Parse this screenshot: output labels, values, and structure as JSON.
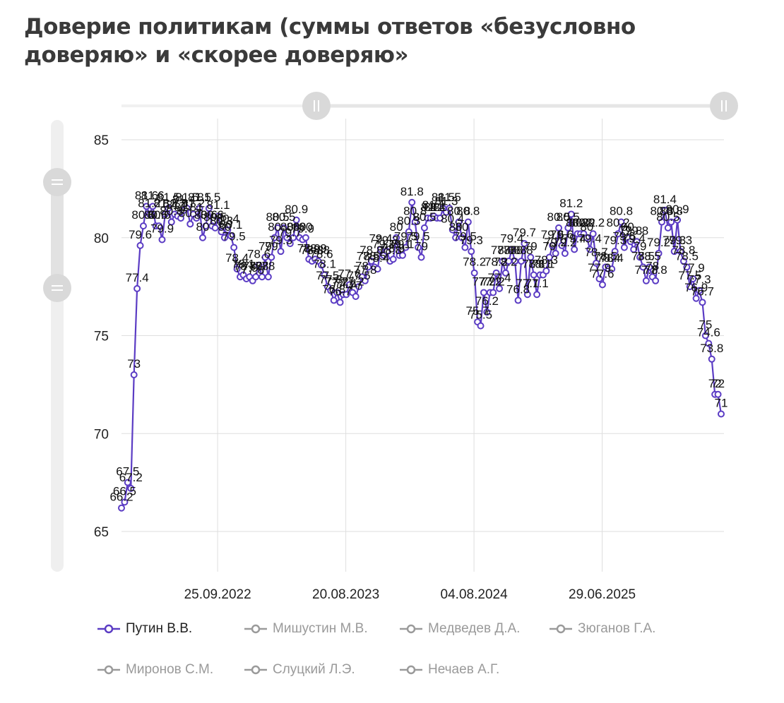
{
  "title": "Доверие политикам (суммы ответов «безусловно доверяю» и «скорее доверяю»",
  "colors": {
    "primary": "#5b3cc4",
    "inactive": "#9a9a9a",
    "grid": "#dedede",
    "scrollbar": "#ededed",
    "handle": "#d9d9d9"
  },
  "chart_data": {
    "type": "line",
    "title": "Доверие политикам (суммы ответов «безусловно доверяю» и «скорее доверяю»",
    "xlabel": "",
    "ylabel": "",
    "ylim": [
      65,
      85
    ],
    "y_ticks": [
      65,
      70,
      75,
      80,
      85
    ],
    "x_tick_labels": [
      "25.09.2022",
      "20.08.2023",
      "04.08.2024",
      "29.06.2025"
    ],
    "grid": true,
    "legend_position": "bottom",
    "data_labels": true,
    "series": [
      {
        "name": "Путин В.В.",
        "active": true,
        "values": [
          66.2,
          66.5,
          67.5,
          67.2,
          73.0,
          77.4,
          79.6,
          80.6,
          81.6,
          81.2,
          81.6,
          80.6,
          80.6,
          79.9,
          81.2,
          81.5,
          80.8,
          81.2,
          81.1,
          81.0,
          81.4,
          81.5,
          80.7,
          81.2,
          81.0,
          81.5,
          80.0,
          80.6,
          81.5,
          80.6,
          80.5,
          81.1,
          80.3,
          80.0,
          80.4,
          80.1,
          79.5,
          78.4,
          78.0,
          78.1,
          77.9,
          78.0,
          77.8,
          78.0,
          78.6,
          78.0,
          79.0,
          78.0,
          79.0,
          80.0,
          80.5,
          79.3,
          80.5,
          80.0,
          79.7,
          80.0,
          80.9,
          80.0,
          79.9,
          80.0,
          78.9,
          78.8,
          78.9,
          78.8,
          78.6,
          78.1,
          77.5,
          77.3,
          76.8,
          77.2,
          76.7,
          77.1,
          77.1,
          77.6,
          77.2,
          77.0,
          77.5,
          78.0,
          77.8,
          78.5,
          78.8,
          78.5,
          78.4,
          79.4,
          79.1,
          79.3,
          78.8,
          78.9,
          80.0,
          79.1,
          79.1,
          79.5,
          80.3,
          81.8,
          80.8,
          79.5,
          79.0,
          80.5,
          81.0,
          81.0,
          81.1,
          81.0,
          81.0,
          81.5,
          81.3,
          81.5,
          80.4,
          80.0,
          80.8,
          80.0,
          79.5,
          80.8,
          79.3,
          78.2,
          75.7,
          75.5,
          77.2,
          76.2,
          77.2,
          77.2,
          78.2,
          77.4,
          78.8,
          78.2,
          78.8,
          79.4,
          78.8,
          76.8,
          78.8,
          79.7,
          77.1,
          79.0,
          78.1,
          77.1,
          78.1,
          78.1,
          78.3,
          79.0,
          79.6,
          79.2,
          80.5,
          79.6,
          79.2,
          80.5,
          81.2,
          79.4,
          80.2,
          80.2,
          80.2,
          80.0,
          79.4,
          80.2,
          78.7,
          77.9,
          77.6,
          78.5,
          78.4,
          78.4,
          79.3,
          80.2,
          80.8,
          79.5,
          80.0,
          79.8,
          79.4,
          79.8,
          79.0,
          78.5,
          77.8,
          78.5,
          78.0,
          77.8,
          79.2,
          80.8,
          81.4,
          80.5,
          80.8,
          79.3,
          80.9,
          79.3,
          78.8,
          78.5,
          77.5,
          77.9,
          76.9,
          77.3,
          76.7,
          75.0,
          74.6,
          73.8,
          72.0,
          72.0,
          71.0
        ]
      },
      {
        "name": "Мишустин М.В.",
        "active": false
      },
      {
        "name": "Медведев Д.А.",
        "active": false
      },
      {
        "name": "Зюганов Г.А.",
        "active": false
      },
      {
        "name": "Миронов С.М.",
        "active": false
      },
      {
        "name": "Слуцкий Л.Э.",
        "active": false
      },
      {
        "name": "Нечаев А.Г.",
        "active": false
      }
    ]
  }
}
